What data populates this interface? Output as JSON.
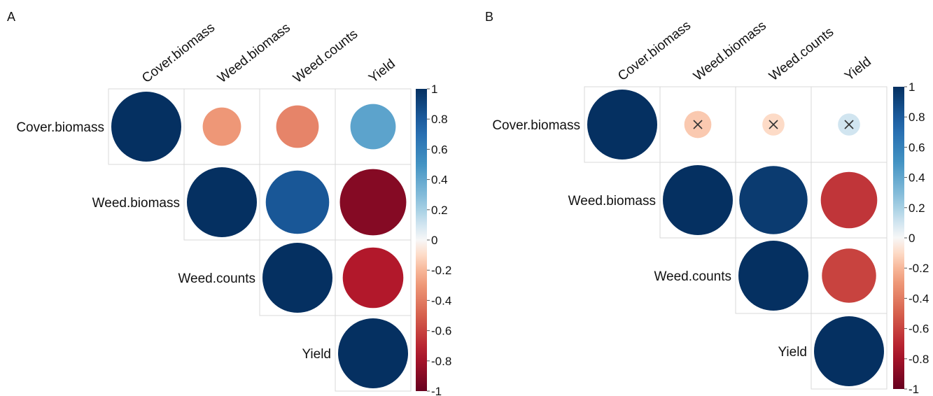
{
  "chart_data": [
    {
      "panel_label": "A",
      "type": "heatmap",
      "style": "correlation-circle-upper",
      "variables": [
        "Cover.biomass",
        "Weed.biomass",
        "Weed.counts",
        "Yield"
      ],
      "matrix": [
        [
          1.0,
          -0.3,
          -0.37,
          0.42
        ],
        [
          null,
          1.0,
          0.82,
          -0.9
        ],
        [
          null,
          null,
          1.0,
          -0.75
        ],
        [
          null,
          null,
          null,
          1.0
        ]
      ],
      "crossed": [],
      "colorbar": {
        "min": -1,
        "max": 1,
        "ticks": [
          "-1",
          "-0.8",
          "-0.6",
          "-0.4",
          "-0.2",
          "0",
          "0.2",
          "0.4",
          "0.6",
          "0.8",
          "1"
        ]
      }
    },
    {
      "panel_label": "B",
      "type": "heatmap",
      "style": "correlation-circle-upper",
      "variables": [
        "Cover.biomass",
        "Weed.biomass",
        "Weed.counts",
        "Yield"
      ],
      "matrix": [
        [
          1.0,
          -0.15,
          -0.1,
          0.1
        ],
        [
          null,
          1.0,
          0.95,
          -0.65
        ],
        [
          null,
          null,
          1.0,
          -0.6
        ],
        [
          null,
          null,
          null,
          1.0
        ]
      ],
      "crossed": [
        [
          0,
          1
        ],
        [
          0,
          2
        ],
        [
          0,
          3
        ]
      ],
      "colorbar": {
        "min": -1,
        "max": 1,
        "ticks": [
          "-1",
          "-0.8",
          "-0.6",
          "-0.4",
          "-0.2",
          "0",
          "0.2",
          "0.4",
          "0.6",
          "0.8",
          "1"
        ]
      }
    }
  ],
  "colors": {
    "negative_strong": "#67001F",
    "neutral": "#F7F7F7",
    "positive_strong": "#053061",
    "grid": "#d9d9d9",
    "cross": "#333333"
  }
}
